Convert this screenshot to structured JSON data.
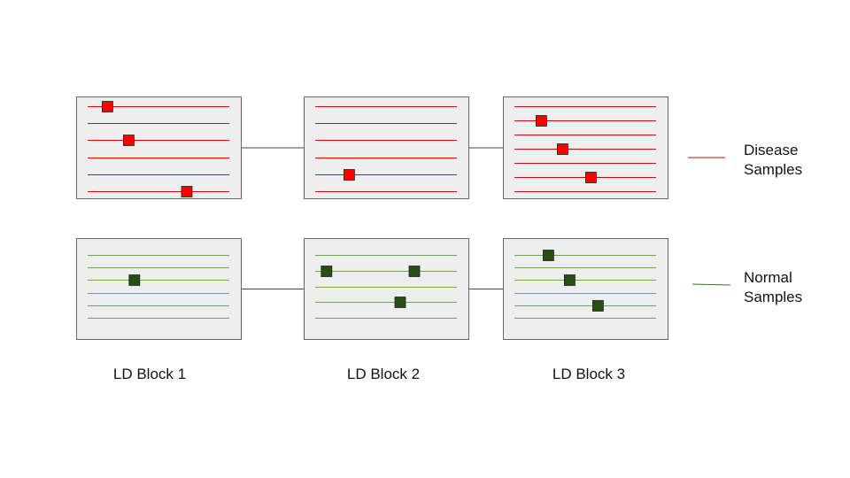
{
  "colors": {
    "disease": "#ff0000",
    "disease_line": "#e00000",
    "normal": "#274e13",
    "normal_line": "#6aa84f",
    "block_fill": "#eeeeee",
    "block_border": "#666666",
    "connector": "#444444"
  },
  "legend": {
    "disease_line1": "Disease",
    "disease_line2": "Samples",
    "normal_line1": "Normal",
    "normal_line2": "Samples"
  },
  "block_labels": [
    "LD Block 1",
    "LD Block 2",
    "LD Block 3"
  ],
  "blocks": [
    {
      "disease": {
        "lines": 6,
        "markers": [
          {
            "line": 0,
            "pos": 0.14
          },
          {
            "line": 2,
            "pos": 0.29
          },
          {
            "line": 5,
            "pos": 0.7
          }
        ]
      },
      "normal": {
        "lines": 6,
        "markers": [
          {
            "line": 2,
            "pos": 0.33
          }
        ]
      }
    },
    {
      "disease": {
        "lines": 6,
        "markers": [
          {
            "line": 4,
            "pos": 0.24
          }
        ]
      },
      "normal": {
        "lines": 5,
        "markers": [
          {
            "line": 1,
            "pos": 0.08
          },
          {
            "line": 1,
            "pos": 0.7
          },
          {
            "line": 3,
            "pos": 0.6
          }
        ]
      }
    },
    {
      "disease": {
        "lines": 7,
        "markers": [
          {
            "line": 1,
            "pos": 0.19
          },
          {
            "line": 3,
            "pos": 0.34
          },
          {
            "line": 5,
            "pos": 0.54
          }
        ]
      },
      "normal": {
        "lines": 6,
        "markers": [
          {
            "line": 0,
            "pos": 0.24
          },
          {
            "line": 2,
            "pos": 0.39
          },
          {
            "line": 4,
            "pos": 0.59
          }
        ]
      }
    }
  ]
}
